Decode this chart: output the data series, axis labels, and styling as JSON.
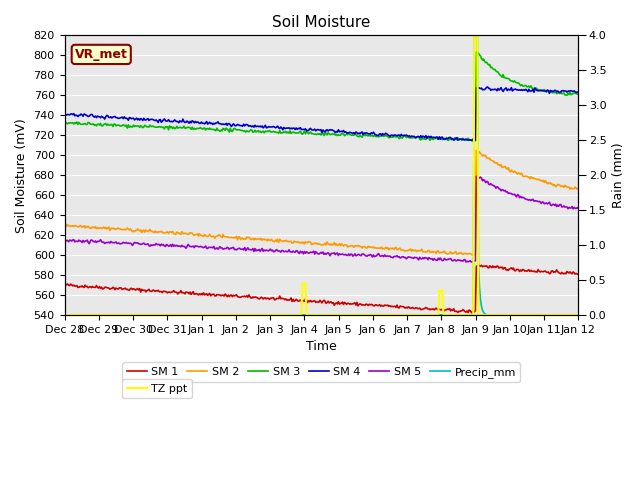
{
  "title": "Soil Moisture",
  "xlabel": "Time",
  "ylabel_left": "Soil Moisture (mV)",
  "ylabel_right": "Rain (mm)",
  "ylim_left": [
    540,
    820
  ],
  "ylim_right": [
    0.0,
    4.0
  ],
  "fig_bg": "#ffffff",
  "plot_bg": "#e8e8e8",
  "annotation_label": "VR_met",
  "annotation_bg": "#ffffcc",
  "annotation_border": "#8b0000",
  "annotation_text_color": "#8b0000",
  "series": {
    "SM1": {
      "color": "#cc0000",
      "label": "SM 1"
    },
    "SM2": {
      "color": "#ff9900",
      "label": "SM 2"
    },
    "SM3": {
      "color": "#00bb00",
      "label": "SM 3"
    },
    "SM4": {
      "color": "#0000cc",
      "label": "SM 4"
    },
    "SM5": {
      "color": "#9900cc",
      "label": "SM 5"
    },
    "Precip": {
      "color": "#00bbbb",
      "label": "Precip_mm"
    },
    "TZppt": {
      "color": "#ffff00",
      "label": "TZ ppt"
    }
  },
  "xtick_labels": [
    "Dec 28",
    "Dec 29",
    "Dec 30",
    "Dec 31",
    "Jan 1",
    "Jan 2",
    "Jan 3",
    "Jan 4",
    "Jan 5",
    "Jan 6",
    "Jan 7",
    "Jan 8",
    "Jan 9",
    "Jan 10",
    "Jan 11",
    "Jan 12"
  ],
  "event_day": 12.0,
  "total_days": 15,
  "n_points": 500
}
